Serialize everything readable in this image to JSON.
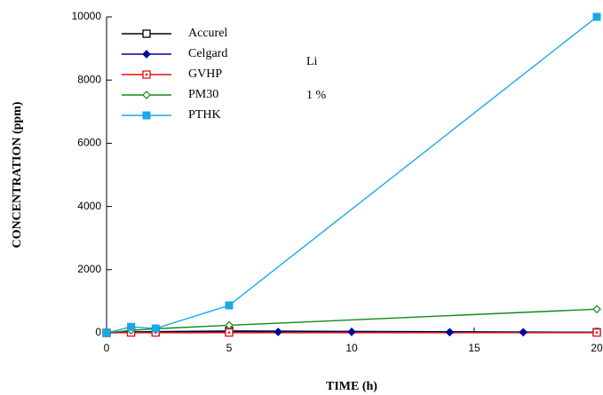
{
  "chart_data": {
    "type": "line",
    "x_label": "TIME (h)",
    "y_label": "CONCENTRATION (ppm)",
    "annotations": [
      "Li",
      "1 %"
    ],
    "xlim": [
      0,
      20
    ],
    "xticks": [
      0,
      5,
      10,
      15,
      20
    ],
    "ylim": [
      0,
      10000
    ],
    "yticks": [
      0,
      2000,
      4000,
      6000,
      8000,
      10000
    ],
    "series": [
      {
        "name": "Accurel",
        "color": "#000000",
        "marker": "open-square",
        "x": [
          0,
          1,
          2,
          5,
          20
        ],
        "values": [
          0,
          30,
          40,
          60,
          20
        ]
      },
      {
        "name": "Celgard",
        "color": "#00009c",
        "marker": "diamond",
        "x": [
          0,
          1,
          2,
          5,
          7,
          10,
          14,
          17,
          20
        ],
        "values": [
          0,
          20,
          20,
          30,
          30,
          30,
          20,
          20,
          20
        ]
      },
      {
        "name": "GVHP",
        "color": "#dd1111",
        "marker": "dot-square",
        "x": [
          0,
          1,
          2,
          5,
          20
        ],
        "values": [
          0,
          10,
          10,
          10,
          10
        ]
      },
      {
        "name": "PM30",
        "color": "#138a13",
        "marker": "open-diamond",
        "x": [
          0,
          1,
          2,
          5,
          20
        ],
        "values": [
          0,
          80,
          130,
          240,
          750
        ]
      },
      {
        "name": "PTHK",
        "color": "#1aa8e6",
        "marker": "square",
        "x": [
          0,
          1,
          2,
          5,
          20
        ],
        "values": [
          0,
          190,
          140,
          870,
          10000
        ]
      }
    ]
  }
}
